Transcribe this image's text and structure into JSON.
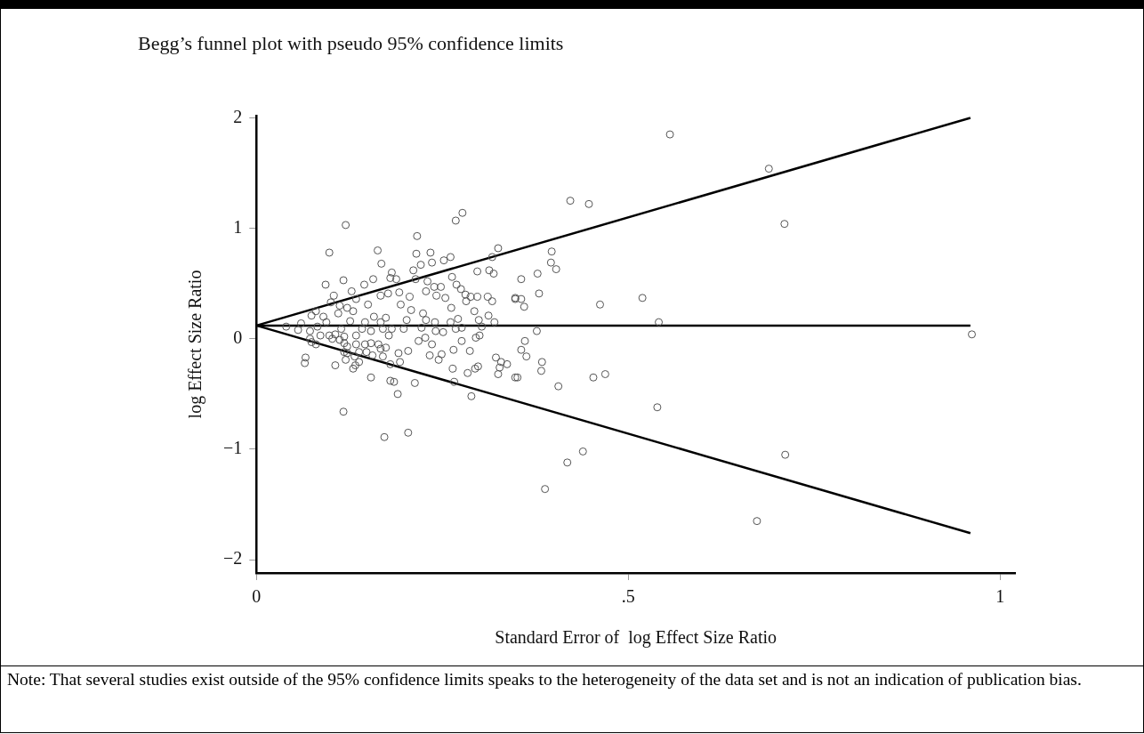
{
  "chart_data": {
    "type": "scatter",
    "title": "Begg’s funnel plot with pseudo 95% confidence limits",
    "xlabel": "Standard Error of  log Effect Size Ratio",
    "ylabel": "log Effect Size Ratio",
    "annotations": [
      "Note: That several studies exist outside of the 95% confidence limits speaks to the heterogeneity of the data set and is not an indication of publication bias."
    ],
    "xlim": [
      0,
      1.02
    ],
    "ylim": [
      -2.12,
      2.02
    ],
    "xticks": [
      0,
      {
        "value": 0.5,
        "label": ".5"
      },
      1
    ],
    "yticks": [
      {
        "value": -2,
        "label": "−2"
      },
      {
        "value": -1,
        "label": "−1"
      },
      0,
      1,
      2
    ],
    "grid": false,
    "legend": false,
    "marker": "circle",
    "series": [
      {
        "color": "#555555",
        "x": [
          0.556,
          0.689,
          0.422,
          0.447,
          0.71,
          0.397,
          0.396,
          0.403,
          0.378,
          0.356,
          0.38,
          0.348,
          0.356,
          0.36,
          0.462,
          0.519,
          0.541,
          0.962,
          0.377,
          0.361,
          0.356,
          0.363,
          0.384,
          0.383,
          0.351,
          0.453,
          0.469,
          0.406,
          0.539,
          0.439,
          0.418,
          0.711,
          0.388,
          0.673,
          0.277,
          0.268,
          0.216,
          0.325,
          0.317,
          0.215,
          0.234,
          0.252,
          0.261,
          0.221,
          0.236,
          0.211,
          0.297,
          0.313,
          0.319,
          0.182,
          0.188,
          0.214,
          0.23,
          0.263,
          0.239,
          0.248,
          0.269,
          0.275,
          0.228,
          0.242,
          0.254,
          0.281,
          0.288,
          0.297,
          0.282,
          0.311,
          0.317,
          0.348,
          0.206,
          0.192,
          0.194,
          0.208,
          0.262,
          0.293,
          0.312,
          0.299,
          0.32,
          0.224,
          0.202,
          0.228,
          0.24,
          0.261,
          0.271,
          0.303,
          0.241,
          0.268,
          0.276,
          0.251,
          0.222,
          0.198,
          0.182,
          0.3,
          0.295,
          0.218,
          0.227,
          0.236,
          0.276,
          0.265,
          0.287,
          0.233,
          0.249,
          0.245,
          0.204,
          0.191,
          0.193,
          0.322,
          0.329,
          0.337,
          0.327,
          0.325,
          0.298,
          0.294,
          0.284,
          0.264,
          0.266,
          0.289,
          0.213,
          0.18,
          0.185,
          0.19,
          0.348,
          0.174,
          0.12,
          0.098,
          0.163,
          0.168,
          0.117,
          0.093,
          0.157,
          0.145,
          0.128,
          0.104,
          0.1,
          0.112,
          0.167,
          0.177,
          0.18,
          0.134,
          0.122,
          0.08,
          0.074,
          0.09,
          0.06,
          0.04,
          0.056,
          0.094,
          0.11,
          0.13,
          0.15,
          0.158,
          0.167,
          0.146,
          0.126,
          0.114,
          0.106,
          0.098,
          0.118,
          0.086,
          0.072,
          0.08,
          0.074,
          0.134,
          0.142,
          0.154,
          0.17,
          0.178,
          0.102,
          0.112,
          0.118,
          0.122,
          0.134,
          0.146,
          0.154,
          0.164,
          0.174,
          0.167,
          0.148,
          0.138,
          0.122,
          0.118,
          0.156,
          0.132,
          0.12,
          0.138,
          0.17,
          0.18,
          0.066,
          0.065,
          0.106,
          0.13,
          0.133,
          0.154,
          0.117,
          0.172,
          0.204,
          0.072,
          0.082
        ],
        "values": [
          1.85,
          1.54,
          1.25,
          1.22,
          1.04,
          0.79,
          0.69,
          0.63,
          0.59,
          0.54,
          0.41,
          0.36,
          0.36,
          0.29,
          0.31,
          0.37,
          0.15,
          0.04,
          0.07,
          -0.02,
          -0.1,
          -0.16,
          -0.21,
          -0.29,
          -0.35,
          -0.35,
          -0.32,
          -0.43,
          -0.62,
          -1.02,
          -1.12,
          -1.05,
          -1.36,
          -1.65,
          1.14,
          1.07,
          0.93,
          0.82,
          0.74,
          0.77,
          0.78,
          0.71,
          0.74,
          0.67,
          0.69,
          0.62,
          0.61,
          0.62,
          0.59,
          0.6,
          0.54,
          0.54,
          0.52,
          0.56,
          0.47,
          0.47,
          0.49,
          0.45,
          0.43,
          0.39,
          0.37,
          0.4,
          0.38,
          0.38,
          0.34,
          0.38,
          0.34,
          0.37,
          0.38,
          0.42,
          0.31,
          0.26,
          0.28,
          0.25,
          0.21,
          0.17,
          0.15,
          0.23,
          0.17,
          0.17,
          0.15,
          0.15,
          0.18,
          0.11,
          0.07,
          0.09,
          0.1,
          0.06,
          0.1,
          0.09,
          0.09,
          0.03,
          0.01,
          -0.02,
          0.01,
          -0.05,
          -0.02,
          -0.1,
          -0.11,
          -0.15,
          -0.14,
          -0.19,
          -0.11,
          -0.13,
          -0.21,
          -0.17,
          -0.21,
          -0.23,
          -0.26,
          -0.32,
          -0.25,
          -0.27,
          -0.31,
          -0.27,
          -0.39,
          -0.52,
          -0.4,
          -0.38,
          -0.39,
          -0.5,
          -0.35,
          0.19,
          1.03,
          0.78,
          0.8,
          0.68,
          0.53,
          0.49,
          0.54,
          0.49,
          0.43,
          0.39,
          0.33,
          0.3,
          0.39,
          0.41,
          0.55,
          0.36,
          0.28,
          0.25,
          0.21,
          0.2,
          0.14,
          0.11,
          0.08,
          0.15,
          0.23,
          0.25,
          0.31,
          0.2,
          0.15,
          0.15,
          0.16,
          0.09,
          0.04,
          0.03,
          0.02,
          0.03,
          0,
          -0.05,
          -0.03,
          0.03,
          0.09,
          0.07,
          0.09,
          0.03,
          0,
          -0.01,
          -0.04,
          -0.07,
          -0.05,
          -0.05,
          -0.04,
          -0.05,
          -0.08,
          -0.09,
          -0.12,
          -0.12,
          -0.13,
          -0.12,
          -0.15,
          -0.16,
          -0.19,
          -0.21,
          -0.16,
          -0.23,
          -0.17,
          -0.22,
          -0.24,
          -0.27,
          -0.24,
          -0.35,
          -0.66,
          -0.89,
          -0.85,
          0.07,
          0.11
        ]
      },
      {
        "type": "line",
        "marker": "none",
        "color": "#000000",
        "x": [
          0,
          0.96
        ],
        "values": [
          0.12,
          2.0
        ]
      },
      {
        "type": "line",
        "marker": "none",
        "color": "#000000",
        "x": [
          0,
          0.96
        ],
        "values": [
          0.12,
          0.12
        ]
      },
      {
        "type": "line",
        "marker": "none",
        "color": "#000000",
        "x": [
          0,
          0.96
        ],
        "values": [
          0.12,
          -1.76
        ]
      }
    ]
  }
}
